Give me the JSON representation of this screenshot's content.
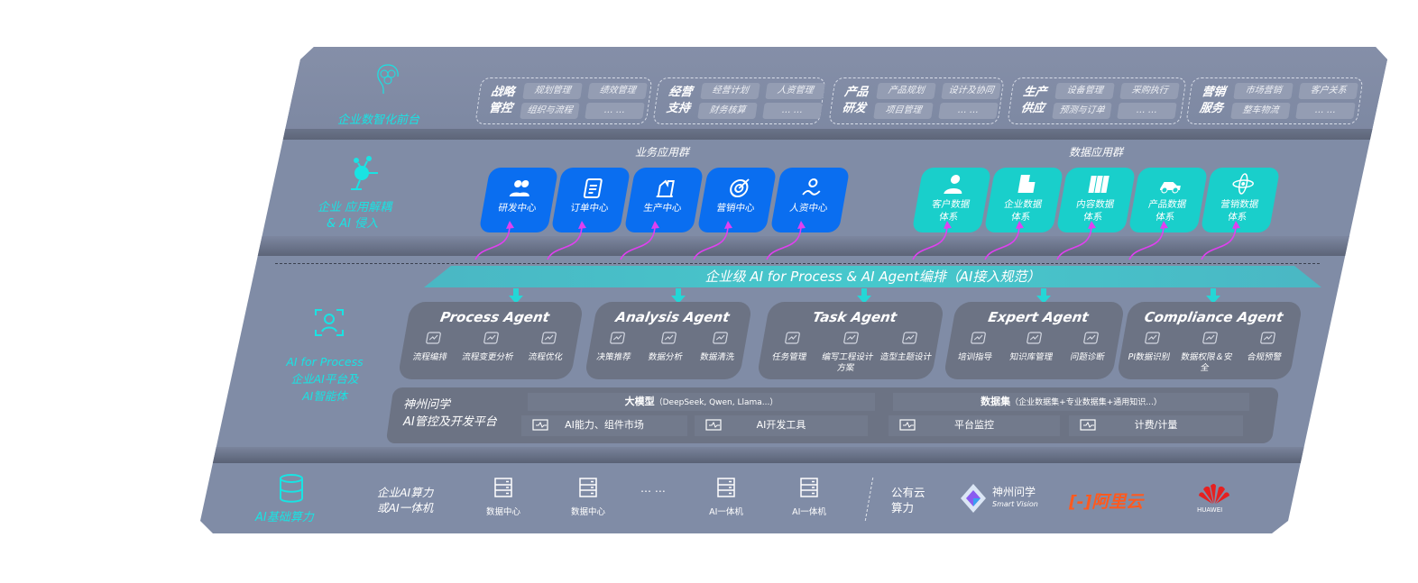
{
  "front": {
    "label": "企业数智化前台",
    "icon": "brain-icon",
    "groups": [
      {
        "title": [
          "战略",
          "管控"
        ],
        "items": [
          "规划管理",
          "绩效管理",
          "组织与流程",
          "… …"
        ]
      },
      {
        "title": [
          "经营",
          "支持"
        ],
        "items": [
          "经营计划",
          "人资管理",
          "财务核算",
          "… …"
        ]
      },
      {
        "title": [
          "产品",
          "研发"
        ],
        "items": [
          "产品规划",
          "设计及协同",
          "项目管理",
          "… …"
        ]
      },
      {
        "title": [
          "生产",
          "供应"
        ],
        "items": [
          "设备管理",
          "采购执行",
          "预测与订单",
          "… …"
        ]
      },
      {
        "title": [
          "营销",
          "服务"
        ],
        "items": [
          "市场营销",
          "客户关系",
          "整车物流",
          "… …"
        ]
      }
    ]
  },
  "apps": {
    "label": [
      "企业 应用解耦",
      "& AI 侵入"
    ],
    "business": {
      "title": "业务应用群",
      "color": "#0a6ef0",
      "items": [
        "研发中心",
        "订单中心",
        "生产中心",
        "营销中心",
        "人资中心"
      ]
    },
    "data": {
      "title": "数据应用群",
      "color": "#19cfcb",
      "items": [
        [
          "客户数据",
          "体系"
        ],
        [
          "企业数据",
          "体系"
        ],
        [
          "内容数据",
          "体系"
        ],
        [
          "产品数据",
          "体系"
        ],
        [
          "营销数据",
          "体系"
        ]
      ]
    }
  },
  "orchestration": {
    "banner": "企业级 AI for Process & AI Agent编排（AI接入规范）"
  },
  "ai_process": {
    "label": [
      "AI for Process",
      "企业AI平台及",
      "AI智能体"
    ],
    "agents": [
      {
        "name": "Process Agent",
        "tools": [
          "流程编排",
          "流程变更分析",
          "流程优化"
        ]
      },
      {
        "name": "Analysis Agent",
        "tools": [
          "决策推荐",
          "数据分析",
          "数据清洗"
        ]
      },
      {
        "name": "Task Agent",
        "tools": [
          "任务管理",
          "编写工程设计方案",
          "造型主题设计"
        ]
      },
      {
        "name": "Expert Agent",
        "tools": [
          "培训指导",
          "知识库管理",
          "问题诊断"
        ]
      },
      {
        "name": "Compliance Agent",
        "tools": [
          "PI数据识别",
          "数据权限＆安全",
          "合规预警"
        ]
      }
    ]
  },
  "platform": {
    "title": [
      "神州问学",
      "AI管控及开发平台"
    ],
    "model": {
      "label": "大模型",
      "detail": "（DeepSeek, Qwen, Llama...）"
    },
    "dataset": {
      "label": "数据集",
      "detail": "（企业数据集+专业数据集+通用知识...）"
    },
    "tools": [
      "AI能力、组件市场",
      "AI开发工具",
      "平台监控",
      "计费/计量"
    ]
  },
  "infra": {
    "label": "AI基础算力",
    "onprem": [
      "企业AI算力",
      "或AI一体机"
    ],
    "nodes": [
      "数据中心",
      "数据中心",
      "AI一体机",
      "AI一体机"
    ],
    "ellipsis": "… …",
    "public": [
      "公有云",
      "算力"
    ],
    "vendors": [
      {
        "name": "神州问学",
        "sub": "Smart Vision",
        "color": "#8a5cf0"
      },
      {
        "name": "阿里云",
        "color": "#ff5a1f"
      },
      {
        "name": "HUAWEI",
        "color": "#e62020"
      }
    ]
  },
  "colors": {
    "panel": "#808ca6",
    "accent": "#19e3e3",
    "arrow": "#e040f0"
  }
}
